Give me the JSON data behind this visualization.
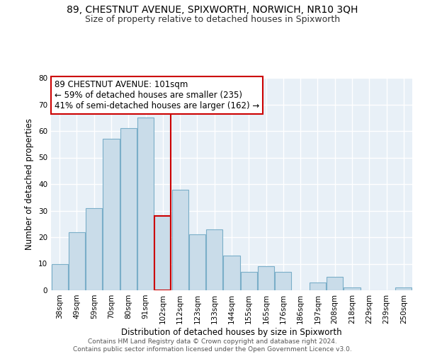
{
  "title": "89, CHESTNUT AVENUE, SPIXWORTH, NORWICH, NR10 3QH",
  "subtitle": "Size of property relative to detached houses in Spixworth",
  "xlabel": "Distribution of detached houses by size in Spixworth",
  "ylabel": "Number of detached properties",
  "bar_labels": [
    "38sqm",
    "49sqm",
    "59sqm",
    "70sqm",
    "80sqm",
    "91sqm",
    "102sqm",
    "112sqm",
    "123sqm",
    "133sqm",
    "144sqm",
    "155sqm",
    "165sqm",
    "176sqm",
    "186sqm",
    "197sqm",
    "208sqm",
    "218sqm",
    "229sqm",
    "239sqm",
    "250sqm"
  ],
  "bar_values": [
    10,
    22,
    31,
    57,
    61,
    65,
    28,
    38,
    21,
    23,
    13,
    7,
    9,
    7,
    0,
    3,
    5,
    1,
    0,
    0,
    1
  ],
  "bar_color": "#c9dce9",
  "bar_edge_color": "#7aaec8",
  "highlight_bar_index": 6,
  "highlight_edge_color": "#cc0000",
  "vline_color": "#cc0000",
  "annotation_text": "89 CHESTNUT AVENUE: 101sqm\n← 59% of detached houses are smaller (235)\n41% of semi-detached houses are larger (162) →",
  "annotation_box_edge_color": "#cc0000",
  "annotation_box_face_color": "#ffffff",
  "ylim": [
    0,
    80
  ],
  "yticks": [
    0,
    10,
    20,
    30,
    40,
    50,
    60,
    70,
    80
  ],
  "footer_text": "Contains HM Land Registry data © Crown copyright and database right 2024.\nContains public sector information licensed under the Open Government Licence v3.0.",
  "bg_color": "#ffffff",
  "plot_bg_color": "#e8f0f7",
  "title_fontsize": 10,
  "subtitle_fontsize": 9,
  "axis_label_fontsize": 8.5,
  "tick_fontsize": 7.5,
  "annotation_fontsize": 8.5,
  "footer_fontsize": 6.5
}
